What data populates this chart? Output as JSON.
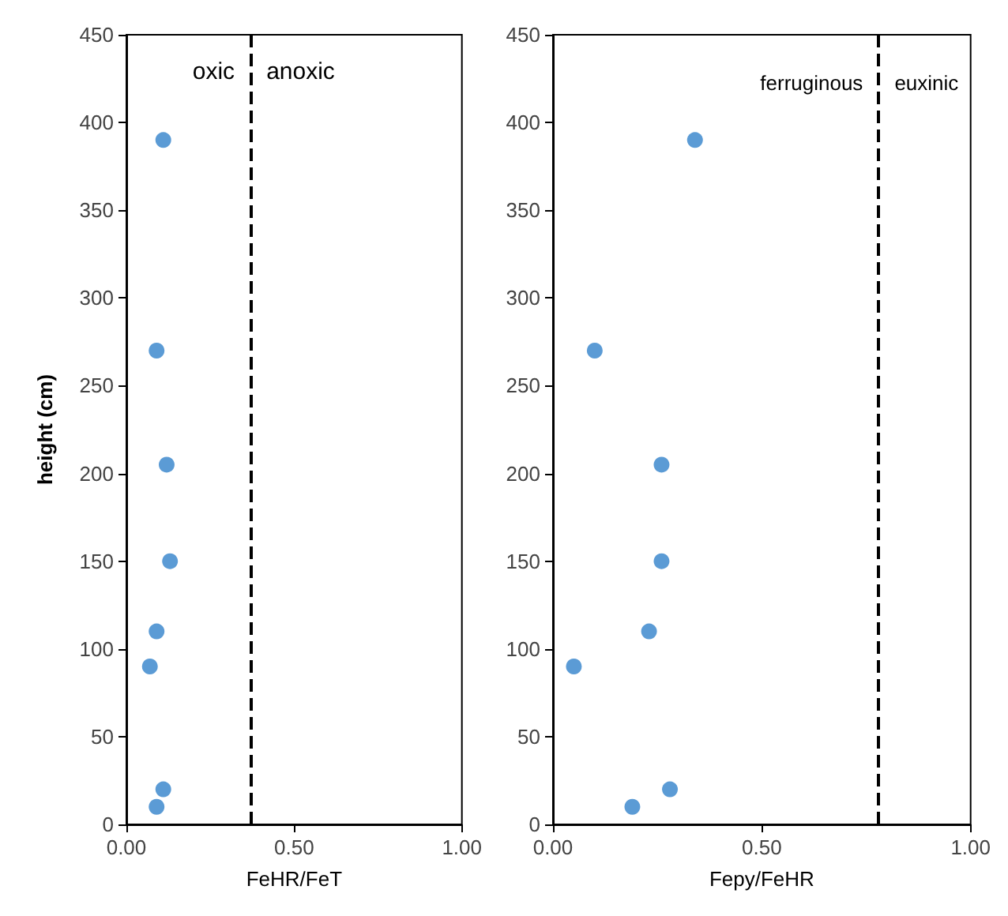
{
  "chart_data": [
    {
      "type": "scatter",
      "xlabel": "FeHR/FeT",
      "ylabel": "height (cm)",
      "xlim": [
        0,
        1
      ],
      "xticks": [
        {
          "value": 0,
          "label": "0.00"
        },
        {
          "value": 0.5,
          "label": "0.50"
        },
        {
          "value": 1,
          "label": "1.00"
        }
      ],
      "ylim": [
        0,
        450
      ],
      "yticks": [
        0,
        50,
        100,
        150,
        200,
        250,
        300,
        350,
        400,
        450
      ],
      "grid": false,
      "marker": "circle",
      "series": [
        {
          "color": "#5b9bd5",
          "x": [
            0.11,
            0.09,
            0.12,
            0.13,
            0.09,
            0.07,
            0.11,
            0.09
          ],
          "values": [
            390,
            270,
            205,
            150,
            110,
            90,
            20,
            10
          ]
        }
      ],
      "ref_lines": [
        {
          "axis": "x",
          "value": 0.37,
          "color": "#000000",
          "line_style": "dashed"
        }
      ],
      "annotations": [
        "oxic",
        "anoxic"
      ]
    },
    {
      "type": "scatter",
      "xlabel": "Fepy/FeHR",
      "xlim": [
        0,
        1
      ],
      "xticks": [
        {
          "value": 0,
          "label": "0.00"
        },
        {
          "value": 0.5,
          "label": "0.50"
        },
        {
          "value": 1,
          "label": "1.00"
        }
      ],
      "ylim": [
        0,
        450
      ],
      "yticks": [
        0,
        50,
        100,
        150,
        200,
        250,
        300,
        350,
        400,
        450
      ],
      "grid": false,
      "marker": "circle",
      "series": [
        {
          "color": "#5b9bd5",
          "x": [
            0.34,
            0.1,
            0.26,
            0.26,
            0.23,
            0.05,
            0.28,
            0.19
          ],
          "values": [
            390,
            270,
            205,
            150,
            110,
            90,
            20,
            10
          ]
        }
      ],
      "ref_lines": [
        {
          "axis": "x",
          "value": 0.78,
          "color": "#000000",
          "line_style": "dashed"
        }
      ],
      "annotations": [
        "ferruginous",
        "euxinic"
      ]
    }
  ]
}
